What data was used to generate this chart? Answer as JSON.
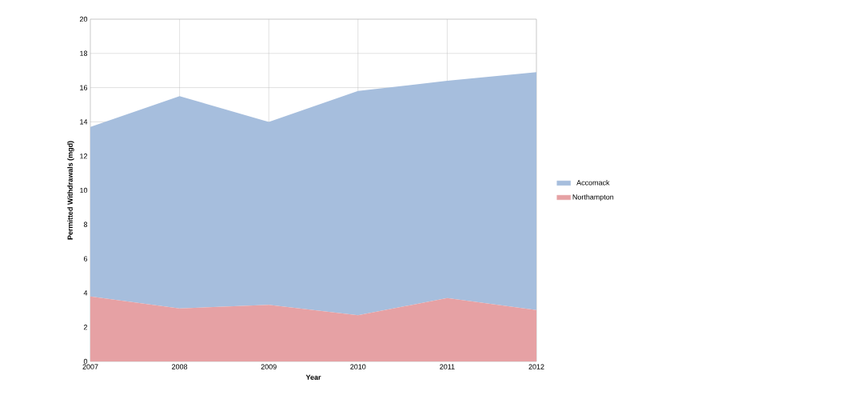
{
  "chart_data": {
    "type": "area",
    "stacked": true,
    "xlabel": "Year",
    "ylabel": "Permitted Withdrawals (mgd)",
    "x": [
      2007,
      2008,
      2009,
      2010,
      2011,
      2012
    ],
    "series": [
      {
        "name": "Northampton",
        "color": "#e6a1a4",
        "values": [
          3.8,
          3.1,
          3.3,
          2.7,
          3.7,
          3.0
        ]
      },
      {
        "name": "Accomack",
        "color": "#a6bedd",
        "values": [
          9.9,
          12.4,
          10.7,
          13.1,
          12.7,
          13.9
        ]
      }
    ],
    "xlim": [
      2007,
      2012
    ],
    "xticks": [
      2007,
      2008,
      2009,
      2010,
      2011,
      2012
    ],
    "ylim": [
      0,
      20
    ],
    "yticks": [
      0,
      2,
      4,
      6,
      8,
      10,
      12,
      14,
      16,
      18,
      20
    ],
    "grid": true,
    "legend": "right"
  }
}
